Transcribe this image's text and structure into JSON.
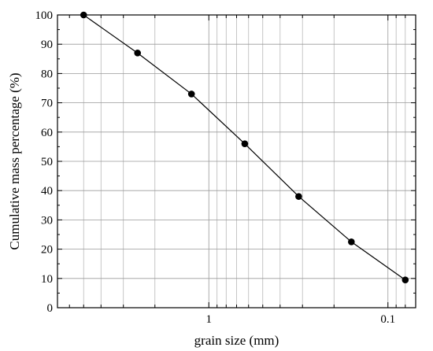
{
  "chart_data": {
    "type": "line",
    "xlabel": "grain size  (mm)",
    "ylabel": "Cumulative mass percentage (%)",
    "x_scale": "log",
    "x_reversed": true,
    "xlim": [
      7,
      0.07
    ],
    "ylim": [
      0,
      100
    ],
    "grid": true,
    "x_major_ticks": [
      {
        "value": 1,
        "label": "1"
      },
      {
        "value": 0.1,
        "label": "0.1"
      }
    ],
    "x_minor_ticks": [
      6,
      5,
      4,
      3,
      2,
      0.9,
      0.8,
      0.7,
      0.6,
      0.5,
      0.4,
      0.3,
      0.2,
      0.09,
      0.08
    ],
    "x_grid_lines": [
      5,
      4,
      3,
      2,
      1,
      0.9,
      0.8,
      0.7,
      0.6,
      0.5,
      0.4,
      0.3,
      0.2,
      0.1,
      0.09,
      0.08
    ],
    "y_ticks": [
      0,
      10,
      20,
      30,
      40,
      50,
      60,
      70,
      80,
      90,
      100
    ],
    "series": [
      {
        "x": [
          5,
          2.5,
          1.25,
          0.63,
          0.315,
          0.16,
          0.08
        ],
        "y": [
          100,
          87,
          73,
          56,
          38,
          22.5,
          9.5
        ],
        "color": "#000000",
        "marker": "circle"
      }
    ]
  }
}
